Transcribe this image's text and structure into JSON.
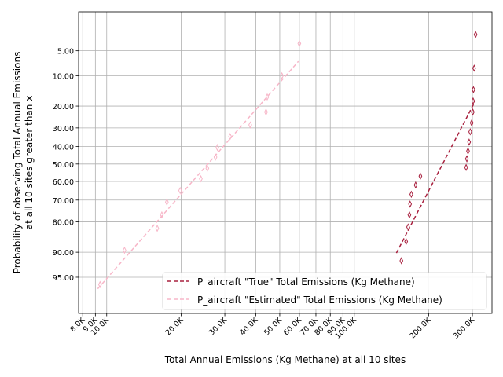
{
  "chart_data": {
    "type": "scatter",
    "xlabel": "Total Annual Emissions (Kg Methane) at all 10 sites",
    "ylabel_lines": [
      "Probability of observing Total Annual Emissions",
      "at all 10 sites greater than x"
    ],
    "x_scale": "log",
    "xlim": [
      7700,
      360000
    ],
    "y_scale": "probit",
    "ylim": [
      0.985,
      0.0135
    ],
    "x_ticks": [
      8000,
      9000,
      10000,
      20000,
      30000,
      40000,
      50000,
      60000,
      70000,
      80000,
      90000,
      100000,
      200000,
      300000
    ],
    "x_tick_labels": [
      "8.0K",
      "9.0K",
      "10.0K",
      "20.0K",
      "30.0K",
      "40.0K",
      "50.0K",
      "60.0K",
      "70.0K",
      "80.0K",
      "90.0K",
      "100.0K",
      "200.0K",
      "300.0K"
    ],
    "y_ticks": [
      0.05,
      0.1,
      0.2,
      0.3,
      0.4,
      0.5,
      0.6,
      0.7,
      0.8,
      0.9,
      0.95
    ],
    "y_tick_labels": [
      "5.00",
      "10.00",
      "20.00",
      "30.00",
      "40.00",
      "50.00",
      "60.00",
      "70.00",
      "80.00",
      "90.00",
      "95.00"
    ],
    "grid": true,
    "legend_position": "lower-right",
    "series": [
      {
        "name": "P_aircraft \"True\" Total Emissions (Kg Methane)",
        "color": "#a8203e",
        "marker": "thin-diamond",
        "points": [
          {
            "x": 309000,
            "y": 0.03
          },
          {
            "x": 305000,
            "y": 0.082
          },
          {
            "x": 303000,
            "y": 0.14
          },
          {
            "x": 302000,
            "y": 0.18
          },
          {
            "x": 301000,
            "y": 0.225
          },
          {
            "x": 298000,
            "y": 0.275
          },
          {
            "x": 294000,
            "y": 0.32
          },
          {
            "x": 291000,
            "y": 0.375
          },
          {
            "x": 288000,
            "y": 0.425
          },
          {
            "x": 285000,
            "y": 0.47
          },
          {
            "x": 283000,
            "y": 0.52
          },
          {
            "x": 185000,
            "y": 0.57
          },
          {
            "x": 177000,
            "y": 0.62
          },
          {
            "x": 170000,
            "y": 0.67
          },
          {
            "x": 168000,
            "y": 0.72
          },
          {
            "x": 167000,
            "y": 0.77
          },
          {
            "x": 165000,
            "y": 0.82
          },
          {
            "x": 162000,
            "y": 0.87
          },
          {
            "x": 155000,
            "y": 0.92
          }
        ],
        "fit": {
          "x": [
            148000,
            307000
          ],
          "y": [
            0.902,
            0.183
          ]
        }
      },
      {
        "name": "P_aircraft \"Estimated\" Total Emissions (Kg Methane)",
        "color": "#f7b6c8",
        "marker": "thin-diamond",
        "points": [
          {
            "x": 60000,
            "y": 0.04
          },
          {
            "x": 51000,
            "y": 0.1
          },
          {
            "x": 44500,
            "y": 0.165
          },
          {
            "x": 44000,
            "y": 0.225
          },
          {
            "x": 38000,
            "y": 0.285
          },
          {
            "x": 31500,
            "y": 0.345
          },
          {
            "x": 28000,
            "y": 0.405
          },
          {
            "x": 27500,
            "y": 0.46
          },
          {
            "x": 25500,
            "y": 0.525
          },
          {
            "x": 24000,
            "y": 0.585
          },
          {
            "x": 19800,
            "y": 0.65
          },
          {
            "x": 17500,
            "y": 0.71
          },
          {
            "x": 16700,
            "y": 0.77
          },
          {
            "x": 16000,
            "y": 0.825
          },
          {
            "x": 11800,
            "y": 0.895
          },
          {
            "x": 9400,
            "y": 0.96
          }
        ],
        "fit": {
          "x": [
            9200,
            59500
          ],
          "y": [
            0.965,
            0.068
          ]
        }
      }
    ]
  }
}
